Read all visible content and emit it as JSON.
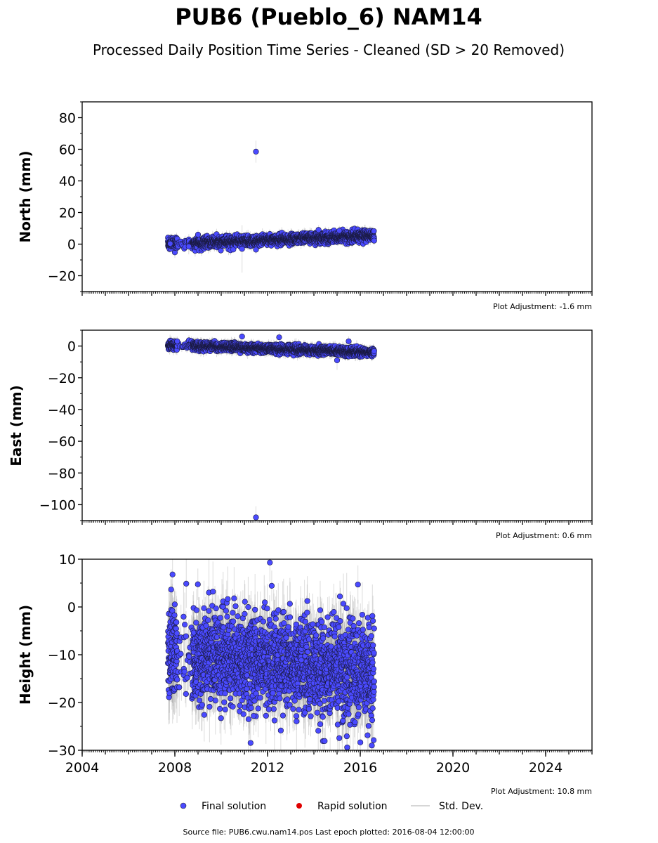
{
  "header": {
    "title": "PUB6 (Pueblo_6) NAM14",
    "subtitle": "Processed Daily Position Time Series - Cleaned (SD > 20 Removed)"
  },
  "footer": {
    "source": "Source file: PUB6.cwu.nam14.pos  Last epoch plotted: 2016-08-04 12:00:00"
  },
  "legend": {
    "placement": "bottom-center",
    "items": [
      {
        "label": "Final solution",
        "color": "#4a4aff",
        "marker": "dot"
      },
      {
        "label": "Rapid solution",
        "color": "#e00000",
        "marker": "dot"
      },
      {
        "label": "Std. Dev.",
        "color": "#c8c8c8",
        "marker": "line"
      }
    ]
  },
  "chart_data": [
    {
      "type": "scatter",
      "ylabel": "North (mm)",
      "ylim": [
        -30,
        90
      ],
      "yticks": [
        -20,
        0,
        20,
        40,
        60,
        80
      ],
      "ytick_labels": [
        "−20",
        "0",
        "20",
        "40",
        "60",
        "80"
      ],
      "xlim": [
        2004,
        2026
      ],
      "adjustment": "Plot Adjustment: -1.6 mm",
      "data_range": [
        2007.7,
        2016.6
      ],
      "trend": {
        "start": 0,
        "end": 5.5,
        "scatter": 1.6,
        "sd": 2.5
      },
      "points": [
        {
          "x": 2007.8,
          "y": 0.3,
          "sd": 3.0
        },
        {
          "x": 2008.6,
          "y": -1.5,
          "sd": 5.0
        },
        {
          "x": 2011.5,
          "y": 58.5,
          "sd": 7.0
        },
        {
          "x": 2011.5,
          "y": -3.5,
          "sd": 3.0
        },
        {
          "x": 2010.9,
          "y": -3.0,
          "sd": 15.0
        },
        {
          "x": 2014.2,
          "y": 9.0,
          "sd": 3.0
        },
        {
          "x": 2015.1,
          "y": 8.5,
          "sd": 3.0
        },
        {
          "x": 2009.0,
          "y": 6.0,
          "sd": 3.0
        }
      ]
    },
    {
      "type": "scatter",
      "ylabel": "East (mm)",
      "ylim": [
        -110,
        10
      ],
      "yticks": [
        -100,
        -80,
        -60,
        -40,
        -20,
        0
      ],
      "ytick_labels": [
        "−100",
        "−80",
        "−60",
        "−40",
        "−20",
        "0"
      ],
      "xlim": [
        2004,
        2026
      ],
      "adjustment": "Plot Adjustment: 0.6 mm",
      "data_range": [
        2007.7,
        2016.6
      ],
      "trend": {
        "start": 0.5,
        "end": -4.0,
        "scatter": 1.3,
        "sd": 2.5
      },
      "points": [
        {
          "x": 2011.5,
          "y": -108.0,
          "sd": 7.0
        },
        {
          "x": 2010.9,
          "y": 6.0,
          "sd": 3.0
        },
        {
          "x": 2012.5,
          "y": 5.5,
          "sd": 3.0
        },
        {
          "x": 2015.0,
          "y": -9.0,
          "sd": 6.0
        },
        {
          "x": 2015.5,
          "y": 3.0,
          "sd": 3.0
        },
        {
          "x": 2008.1,
          "y": 3.0,
          "sd": 3.0
        }
      ]
    },
    {
      "type": "scatter",
      "ylabel": "Height (mm)",
      "ylim": [
        -30,
        10
      ],
      "yticks": [
        -30,
        -20,
        -10,
        0,
        10
      ],
      "ytick_labels": [
        "−30",
        "−20",
        "−10",
        "0",
        "10"
      ],
      "xlim": [
        2004,
        2026
      ],
      "xticks": [
        2004,
        2008,
        2012,
        2016,
        2020,
        2024
      ],
      "xtick_labels": [
        "2004",
        "2008",
        "2012",
        "2016",
        "2020",
        "2024"
      ],
      "adjustment": "Plot Adjustment: 10.8 mm",
      "data_range": [
        2007.7,
        2016.6
      ],
      "trend": {
        "start": -10.0,
        "end": -14.0,
        "scatter": 5.0,
        "sd": 5.0
      },
      "points": [
        {
          "x": 2007.9,
          "y": 6.8,
          "sd": 4.0
        },
        {
          "x": 2008.1,
          "y": -15.2,
          "sd": 4.0
        },
        {
          "x": 2012.1,
          "y": 9.3,
          "sd": 4.0
        },
        {
          "x": 2011.4,
          "y": -22.8,
          "sd": 4.0
        },
        {
          "x": 2016.5,
          "y": -29.0,
          "sd": 4.0
        },
        {
          "x": 2015.9,
          "y": 4.7,
          "sd": 4.0
        },
        {
          "x": 2016.6,
          "y": -4.5,
          "sd": 4.0
        }
      ]
    }
  ]
}
